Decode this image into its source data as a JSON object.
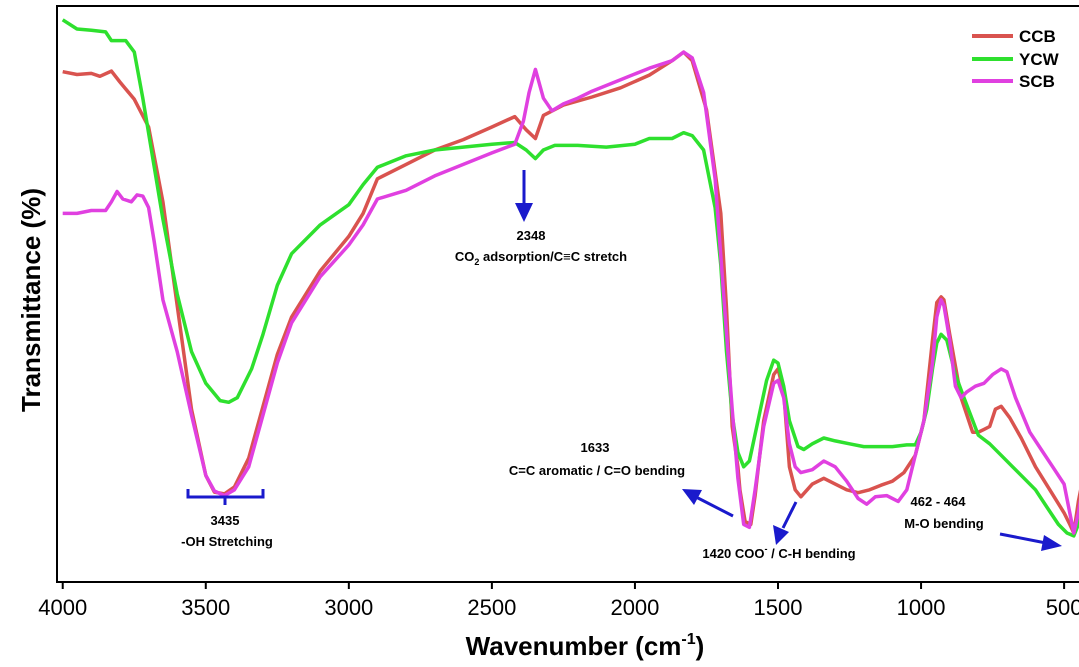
{
  "chart_data": {
    "type": "line",
    "xlabel": "Wavenumber (cm",
    "xlabel_sup": "-1",
    "xlabel_close": ")",
    "ylabel": "Transmittance (%)",
    "xlim": [
      4020,
      420
    ],
    "ylim": [
      0,
      1
    ],
    "xticks": [
      {
        "value": 4000,
        "label": "4000"
      },
      {
        "value": 3500,
        "label": "3500"
      },
      {
        "value": 3000,
        "label": "3000"
      },
      {
        "value": 2500,
        "label": "2500"
      },
      {
        "value": 2000,
        "label": "2000"
      },
      {
        "value": 1500,
        "label": "1500"
      },
      {
        "value": 1000,
        "label": "1000"
      },
      {
        "value": 500,
        "label": "500"
      }
    ],
    "legend": "top-right",
    "grid": false,
    "series": [
      {
        "name": "CCB",
        "color": "#d9534f",
        "points": [
          [
            4000,
            0.886
          ],
          [
            3950,
            0.881
          ],
          [
            3900,
            0.883
          ],
          [
            3870,
            0.878
          ],
          [
            3830,
            0.887
          ],
          [
            3800,
            0.868
          ],
          [
            3750,
            0.838
          ],
          [
            3700,
            0.79
          ],
          [
            3650,
            0.66
          ],
          [
            3600,
            0.48
          ],
          [
            3550,
            0.3
          ],
          [
            3500,
            0.185
          ],
          [
            3470,
            0.156
          ],
          [
            3435,
            0.153
          ],
          [
            3400,
            0.165
          ],
          [
            3350,
            0.215
          ],
          [
            3300,
            0.305
          ],
          [
            3250,
            0.395
          ],
          [
            3200,
            0.46
          ],
          [
            3100,
            0.54
          ],
          [
            3000,
            0.6
          ],
          [
            2950,
            0.64
          ],
          [
            2900,
            0.7
          ],
          [
            2800,
            0.725
          ],
          [
            2700,
            0.75
          ],
          [
            2600,
            0.768
          ],
          [
            2500,
            0.79
          ],
          [
            2420,
            0.808
          ],
          [
            2380,
            0.785
          ],
          [
            2348,
            0.77
          ],
          [
            2320,
            0.81
          ],
          [
            2250,
            0.828
          ],
          [
            2150,
            0.842
          ],
          [
            2050,
            0.858
          ],
          [
            1950,
            0.88
          ],
          [
            1870,
            0.905
          ],
          [
            1830,
            0.92
          ],
          [
            1800,
            0.905
          ],
          [
            1750,
            0.82
          ],
          [
            1700,
            0.64
          ],
          [
            1680,
            0.475
          ],
          [
            1660,
            0.27
          ],
          [
            1640,
            0.2
          ],
          [
            1633,
            0.16
          ],
          [
            1615,
            0.105
          ],
          [
            1595,
            0.1
          ],
          [
            1580,
            0.15
          ],
          [
            1550,
            0.28
          ],
          [
            1515,
            0.36
          ],
          [
            1500,
            0.37
          ],
          [
            1480,
            0.33
          ],
          [
            1460,
            0.2
          ],
          [
            1440,
            0.16
          ],
          [
            1420,
            0.148
          ],
          [
            1380,
            0.17
          ],
          [
            1340,
            0.18
          ],
          [
            1300,
            0.17
          ],
          [
            1260,
            0.16
          ],
          [
            1220,
            0.155
          ],
          [
            1180,
            0.16
          ],
          [
            1140,
            0.168
          ],
          [
            1100,
            0.175
          ],
          [
            1060,
            0.19
          ],
          [
            1020,
            0.22
          ],
          [
            990,
            0.28
          ],
          [
            960,
            0.42
          ],
          [
            945,
            0.485
          ],
          [
            930,
            0.495
          ],
          [
            920,
            0.49
          ],
          [
            900,
            0.43
          ],
          [
            860,
            0.32
          ],
          [
            820,
            0.26
          ],
          [
            800,
            0.26
          ],
          [
            780,
            0.265
          ],
          [
            760,
            0.27
          ],
          [
            740,
            0.3
          ],
          [
            720,
            0.305
          ],
          [
            690,
            0.285
          ],
          [
            650,
            0.25
          ],
          [
            600,
            0.2
          ],
          [
            550,
            0.16
          ],
          [
            500,
            0.12
          ],
          [
            480,
            0.1
          ],
          [
            466,
            0.085
          ],
          [
            450,
            0.14
          ],
          [
            430,
            0.19
          ]
        ]
      },
      {
        "name": "YCW",
        "color": "#2ee02e",
        "points": [
          [
            4000,
            0.976
          ],
          [
            3950,
            0.96
          ],
          [
            3900,
            0.958
          ],
          [
            3850,
            0.955
          ],
          [
            3830,
            0.94
          ],
          [
            3800,
            0.94
          ],
          [
            3780,
            0.94
          ],
          [
            3750,
            0.92
          ],
          [
            3720,
            0.84
          ],
          [
            3680,
            0.72
          ],
          [
            3650,
            0.63
          ],
          [
            3600,
            0.5
          ],
          [
            3550,
            0.4
          ],
          [
            3500,
            0.345
          ],
          [
            3450,
            0.315
          ],
          [
            3420,
            0.312
          ],
          [
            3390,
            0.32
          ],
          [
            3340,
            0.37
          ],
          [
            3300,
            0.43
          ],
          [
            3250,
            0.515
          ],
          [
            3200,
            0.57
          ],
          [
            3100,
            0.62
          ],
          [
            3000,
            0.655
          ],
          [
            2950,
            0.69
          ],
          [
            2900,
            0.72
          ],
          [
            2850,
            0.73
          ],
          [
            2800,
            0.74
          ],
          [
            2700,
            0.75
          ],
          [
            2600,
            0.755
          ],
          [
            2500,
            0.76
          ],
          [
            2420,
            0.763
          ],
          [
            2380,
            0.75
          ],
          [
            2348,
            0.735
          ],
          [
            2320,
            0.75
          ],
          [
            2280,
            0.758
          ],
          [
            2200,
            0.758
          ],
          [
            2100,
            0.755
          ],
          [
            2000,
            0.76
          ],
          [
            1950,
            0.77
          ],
          [
            1870,
            0.77
          ],
          [
            1830,
            0.78
          ],
          [
            1800,
            0.775
          ],
          [
            1760,
            0.75
          ],
          [
            1720,
            0.65
          ],
          [
            1700,
            0.55
          ],
          [
            1680,
            0.4
          ],
          [
            1660,
            0.29
          ],
          [
            1640,
            0.225
          ],
          [
            1620,
            0.2
          ],
          [
            1600,
            0.21
          ],
          [
            1570,
            0.28
          ],
          [
            1540,
            0.35
          ],
          [
            1515,
            0.385
          ],
          [
            1500,
            0.38
          ],
          [
            1480,
            0.34
          ],
          [
            1460,
            0.28
          ],
          [
            1430,
            0.235
          ],
          [
            1410,
            0.23
          ],
          [
            1380,
            0.24
          ],
          [
            1340,
            0.25
          ],
          [
            1300,
            0.245
          ],
          [
            1250,
            0.24
          ],
          [
            1200,
            0.235
          ],
          [
            1150,
            0.235
          ],
          [
            1100,
            0.235
          ],
          [
            1050,
            0.238
          ],
          [
            1020,
            0.238
          ],
          [
            1000,
            0.26
          ],
          [
            980,
            0.3
          ],
          [
            960,
            0.37
          ],
          [
            945,
            0.415
          ],
          [
            930,
            0.43
          ],
          [
            910,
            0.42
          ],
          [
            880,
            0.36
          ],
          [
            850,
            0.32
          ],
          [
            800,
            0.255
          ],
          [
            760,
            0.24
          ],
          [
            720,
            0.22
          ],
          [
            680,
            0.2
          ],
          [
            640,
            0.18
          ],
          [
            600,
            0.16
          ],
          [
            560,
            0.13
          ],
          [
            520,
            0.1
          ],
          [
            490,
            0.085
          ],
          [
            466,
            0.08
          ],
          [
            450,
            0.1
          ],
          [
            430,
            0.13
          ]
        ]
      },
      {
        "name": "SCB",
        "color": "#e040e0",
        "points": [
          [
            4000,
            0.64
          ],
          [
            3950,
            0.64
          ],
          [
            3900,
            0.645
          ],
          [
            3850,
            0.645
          ],
          [
            3830,
            0.66
          ],
          [
            3810,
            0.678
          ],
          [
            3790,
            0.665
          ],
          [
            3760,
            0.66
          ],
          [
            3740,
            0.672
          ],
          [
            3720,
            0.67
          ],
          [
            3700,
            0.65
          ],
          [
            3680,
            0.59
          ],
          [
            3650,
            0.49
          ],
          [
            3600,
            0.4
          ],
          [
            3550,
            0.29
          ],
          [
            3500,
            0.185
          ],
          [
            3470,
            0.158
          ],
          [
            3435,
            0.15
          ],
          [
            3400,
            0.16
          ],
          [
            3350,
            0.2
          ],
          [
            3300,
            0.29
          ],
          [
            3250,
            0.38
          ],
          [
            3200,
            0.45
          ],
          [
            3100,
            0.53
          ],
          [
            3000,
            0.585
          ],
          [
            2950,
            0.62
          ],
          [
            2900,
            0.665
          ],
          [
            2800,
            0.68
          ],
          [
            2700,
            0.705
          ],
          [
            2600,
            0.725
          ],
          [
            2500,
            0.745
          ],
          [
            2420,
            0.76
          ],
          [
            2390,
            0.8
          ],
          [
            2370,
            0.85
          ],
          [
            2348,
            0.89
          ],
          [
            2320,
            0.84
          ],
          [
            2290,
            0.818
          ],
          [
            2250,
            0.83
          ],
          [
            2200,
            0.84
          ],
          [
            2150,
            0.852
          ],
          [
            2050,
            0.872
          ],
          [
            1950,
            0.892
          ],
          [
            1870,
            0.905
          ],
          [
            1830,
            0.92
          ],
          [
            1800,
            0.91
          ],
          [
            1760,
            0.85
          ],
          [
            1720,
            0.7
          ],
          [
            1690,
            0.5
          ],
          [
            1660,
            0.3
          ],
          [
            1640,
            0.18
          ],
          [
            1620,
            0.1
          ],
          [
            1600,
            0.095
          ],
          [
            1580,
            0.16
          ],
          [
            1550,
            0.27
          ],
          [
            1515,
            0.345
          ],
          [
            1500,
            0.35
          ],
          [
            1480,
            0.32
          ],
          [
            1460,
            0.24
          ],
          [
            1440,
            0.2
          ],
          [
            1420,
            0.19
          ],
          [
            1380,
            0.195
          ],
          [
            1340,
            0.21
          ],
          [
            1300,
            0.2
          ],
          [
            1260,
            0.175
          ],
          [
            1220,
            0.145
          ],
          [
            1190,
            0.135
          ],
          [
            1160,
            0.148
          ],
          [
            1120,
            0.15
          ],
          [
            1080,
            0.14
          ],
          [
            1050,
            0.16
          ],
          [
            1020,
            0.22
          ],
          [
            990,
            0.28
          ],
          [
            960,
            0.38
          ],
          [
            945,
            0.46
          ],
          [
            930,
            0.49
          ],
          [
            920,
            0.48
          ],
          [
            900,
            0.42
          ],
          [
            880,
            0.34
          ],
          [
            860,
            0.32
          ],
          [
            840,
            0.33
          ],
          [
            810,
            0.34
          ],
          [
            780,
            0.345
          ],
          [
            750,
            0.36
          ],
          [
            720,
            0.37
          ],
          [
            700,
            0.365
          ],
          [
            670,
            0.32
          ],
          [
            620,
            0.26
          ],
          [
            580,
            0.23
          ],
          [
            540,
            0.2
          ],
          [
            500,
            0.17
          ],
          [
            480,
            0.12
          ],
          [
            466,
            0.085
          ],
          [
            450,
            0.12
          ],
          [
            430,
            0.18
          ]
        ]
      }
    ],
    "annotations": [
      {
        "id": "a2348",
        "lines": [
          {
            "text": "2348"
          },
          {
            "text": "CO",
            "sub": "2",
            "tail": " adsorption/C≡C stretch"
          }
        ]
      },
      {
        "id": "a3435",
        "lines": [
          {
            "text": "3435"
          },
          {
            "text": "-OH Stretching"
          }
        ]
      },
      {
        "id": "a1633",
        "lines": [
          {
            "text": "1633"
          },
          {
            "text": "C=C aromatic / C=O bending"
          }
        ]
      },
      {
        "id": "a1420",
        "lines": [
          {
            "text": "1420 COO",
            "sup": "-",
            "tail": " / C-H bending"
          }
        ]
      },
      {
        "id": "a462",
        "lines": [
          {
            "text": "462 - 464"
          },
          {
            "text": "M-O bending"
          }
        ]
      }
    ],
    "arrow_color": "#1a1acc"
  }
}
